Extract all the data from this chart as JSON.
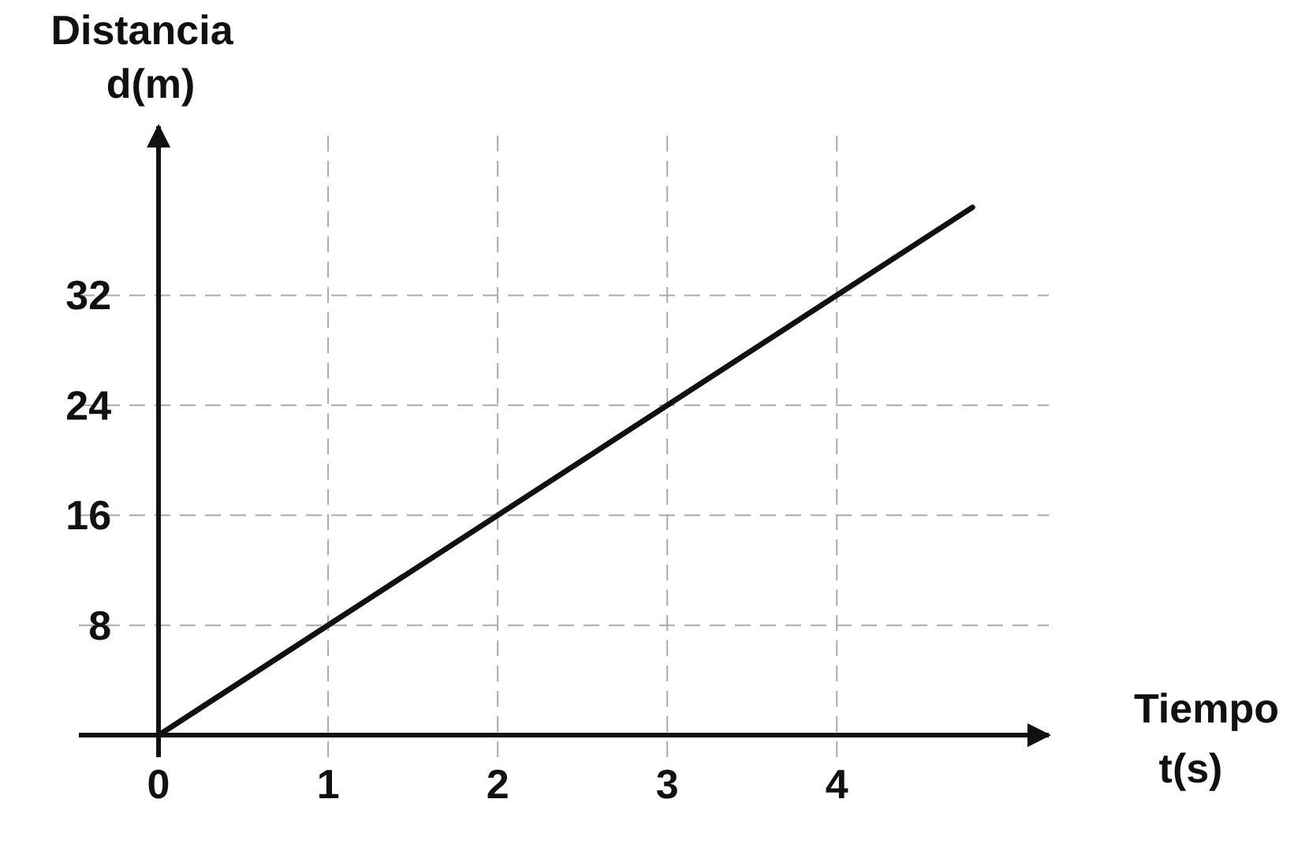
{
  "chart_data": {
    "type": "line",
    "xlabel": "Tiempo\nt(s)",
    "ylabel": "Distancia\nd(m)",
    "series": [
      {
        "color": "#111111",
        "x": [
          0,
          4.8
        ],
        "values": [
          0,
          38.4
        ]
      }
    ],
    "xlim": [
      -0.47,
      5.25
    ],
    "ylim": [
      -1.6,
      44.3
    ],
    "xticks": [
      0,
      1,
      2,
      3,
      4
    ],
    "yticks": [
      8,
      16,
      24,
      32
    ],
    "grid": true,
    "marker": "none",
    "line_style": "solid"
  }
}
